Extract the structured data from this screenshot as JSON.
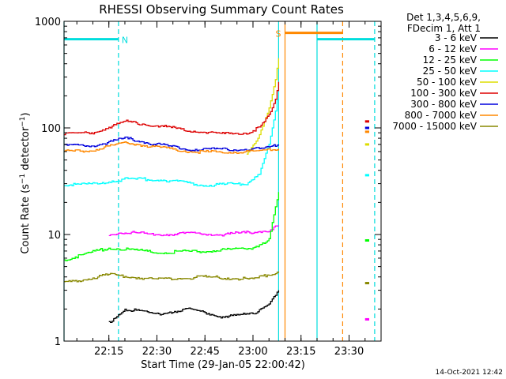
{
  "chart_data": {
    "type": "line",
    "title": "RHESSI Observing Summary Count Rates",
    "xlabel": "Start Time (29-Jan-05 22:00:42)",
    "ylabel": "Count Rate (s^-1 detector^-1)",
    "ylabel_parts": {
      "before": "Count Rate (s",
      "sup1": "−1",
      "middle": " detector",
      "sup2": "−1",
      "after": ")"
    },
    "y_scale": "log",
    "ylim": [
      1,
      1000
    ],
    "xlim": [
      "22:01",
      "23:40"
    ],
    "x_ticks": [
      "22:15",
      "22:30",
      "22:45",
      "23:00",
      "23:15",
      "23:30"
    ],
    "y_ticks": [
      "1",
      "10",
      "100",
      "1000"
    ],
    "legend_header": [
      "Det 1,3,4,5,6,9,",
      "FDecim 1, Att 1"
    ],
    "legend_position": "right",
    "timestamp": "14-Oct-2021 12:42",
    "colors": {
      "3-6": "#000000",
      "6-12": "#ff00ff",
      "12-25": "#00ff00",
      "25-50": "#00ffff",
      "50-100": "#dddd00",
      "100-300": "#dd0000",
      "300-800": "#0000dd",
      "800-7000": "#ff8800",
      "7000-15000": "#888800",
      "saa": "#00dddd",
      "night": "#00dddd",
      "spin": "#ff8800"
    },
    "series": [
      {
        "name": "3 - 6 keV",
        "color": "#000000",
        "x": [
          "22:15",
          "22:20",
          "22:30",
          "22:40",
          "22:50",
          "23:00",
          "23:05",
          "23:08"
        ],
        "values": [
          1.5,
          2.0,
          1.8,
          2.0,
          1.7,
          1.8,
          2.3,
          3.0
        ]
      },
      {
        "name": "6 - 12 keV",
        "color": "#ff00ff",
        "x": [
          "22:15",
          "22:20",
          "22:30",
          "22:40",
          "22:50",
          "23:00",
          "23:05",
          "23:08"
        ],
        "values": [
          10,
          10.5,
          10,
          10.2,
          10,
          10.5,
          11,
          12
        ]
      },
      {
        "name": "12 - 25 keV",
        "color": "#00ff00",
        "x": [
          "22:01",
          "22:15",
          "22:30",
          "22:45",
          "23:00",
          "23:05",
          "23:08"
        ],
        "values": [
          5.8,
          7.5,
          6.8,
          7.0,
          7.5,
          9.0,
          25
        ]
      },
      {
        "name": "25 - 50 keV",
        "color": "#00ffff",
        "x": [
          "22:01",
          "22:10",
          "22:20",
          "22:30",
          "22:45",
          "22:58",
          "23:02",
          "23:05",
          "23:07",
          "23:08"
        ],
        "values": [
          29,
          30,
          33,
          33,
          29,
          30,
          38,
          70,
          140,
          230
        ]
      },
      {
        "name": "50 - 100 keV",
        "color": "#dddd00",
        "x": [
          "22:58",
          "23:02",
          "23:05",
          "23:07",
          "23:08"
        ],
        "values": [
          58,
          85,
          150,
          280,
          450
        ]
      },
      {
        "name": "100 - 300 keV",
        "color": "#dd0000",
        "x": [
          "22:01",
          "22:10",
          "22:20",
          "22:30",
          "22:40",
          "22:50",
          "22:58",
          "23:02",
          "23:05",
          "23:07",
          "23:08"
        ],
        "values": [
          88,
          90,
          115,
          105,
          95,
          88,
          90,
          100,
          130,
          180,
          270
        ]
      },
      {
        "name": "300 - 800 keV",
        "color": "#0000dd",
        "x": [
          "22:01",
          "22:10",
          "22:20",
          "22:30",
          "22:40",
          "22:50",
          "23:00",
          "23:05",
          "23:08"
        ],
        "values": [
          68,
          68,
          80,
          70,
          63,
          63,
          63,
          65,
          70
        ]
      },
      {
        "name": "800 - 7000 keV",
        "color": "#ff8800",
        "x": [
          "22:01",
          "22:10",
          "22:20",
          "22:30",
          "22:40",
          "22:50",
          "23:00",
          "23:05",
          "23:08"
        ],
        "values": [
          60,
          62,
          73,
          66,
          60,
          59,
          60,
          62,
          64
        ]
      },
      {
        "name": "7000 - 15000 keV",
        "color": "#888800",
        "x": [
          "22:01",
          "22:15",
          "22:30",
          "22:45",
          "23:00",
          "23:08"
        ],
        "values": [
          3.5,
          4.2,
          3.8,
          4.0,
          3.8,
          4.5
        ]
      }
    ],
    "post_gap": {
      "x": [
        "23:35",
        "23:40"
      ],
      "values": {
        "6 - 12 keV": [
          1.6,
          1.6
        ],
        "12 - 25 keV": [
          8.8,
          8.8
        ],
        "25 - 50 keV": [
          36,
          36
        ],
        "50 - 100 keV": [
          70,
          70
        ],
        "100 - 300 keV": [
          115,
          115
        ],
        "300 - 800 keV": [
          100,
          100
        ],
        "800 - 7000 keV": [
          92,
          92
        ],
        "7000 - 15000 keV": [
          3.5,
          3.5
        ]
      }
    },
    "flags": [
      {
        "label": "N",
        "color": "#00dddd",
        "start": "22:01",
        "end": "22:18",
        "level": 680
      },
      {
        "label": "S",
        "color": "#ff8800",
        "start": "23:10",
        "end": "23:28",
        "level": 780
      },
      {
        "label": "",
        "color": "#00dddd",
        "start": "23:20",
        "end": "23:38",
        "level": 680
      }
    ],
    "vertical_markers": [
      {
        "time": "22:01",
        "color": "#00dddd",
        "style": "solid"
      },
      {
        "time": "22:18",
        "color": "#00dddd",
        "style": "dashed"
      },
      {
        "time": "23:08",
        "color": "#00dddd",
        "style": "solid"
      },
      {
        "time": "23:10",
        "color": "#ff8800",
        "style": "solid"
      },
      {
        "time": "23:20",
        "color": "#00dddd",
        "style": "solid"
      },
      {
        "time": "23:28",
        "color": "#ff8800",
        "style": "dashed"
      },
      {
        "time": "23:38",
        "color": "#00dddd",
        "style": "dashed"
      }
    ]
  }
}
